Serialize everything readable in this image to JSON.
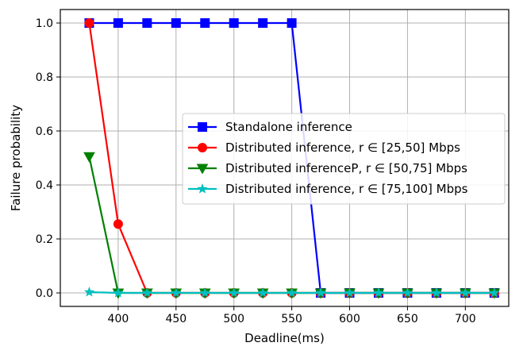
{
  "chart_data": {
    "type": "line",
    "title": "",
    "xlabel": "Deadline(ms)",
    "ylabel": "Failure probability",
    "xlim": [
      350,
      737.5
    ],
    "ylim": [
      -0.05,
      1.05
    ],
    "xticks": [
      400,
      450,
      500,
      550,
      600,
      650,
      700
    ],
    "yticks": [
      0.0,
      0.2,
      0.4,
      0.6,
      0.8,
      1.0
    ],
    "grid": true,
    "legend_position": "center-right",
    "x": [
      375,
      400,
      425,
      450,
      475,
      500,
      525,
      550,
      575,
      600,
      625,
      650,
      675,
      700,
      725
    ],
    "series": [
      {
        "name": "Standalone inference",
        "color": "#0000ff",
        "marker": "square",
        "values": [
          1.0,
          1.0,
          1.0,
          1.0,
          1.0,
          1.0,
          1.0,
          1.0,
          0.0,
          0.0,
          0.0,
          0.0,
          0.0,
          0.0,
          0.0
        ]
      },
      {
        "name": "Distributed inference, r ∈ [25,50] Mbps",
        "color": "#ff0000",
        "marker": "circle",
        "values": [
          1.0,
          0.255,
          0.0,
          0.0,
          0.0,
          0.0,
          0.0,
          0.0,
          0.0,
          0.0,
          0.0,
          0.0,
          0.0,
          0.0,
          0.0
        ]
      },
      {
        "name": "Distributed inferenceP, r ∈ [50,75] Mbps",
        "color": "#008000",
        "marker": "triangle-down",
        "values": [
          0.505,
          0.0,
          0.0,
          0.0,
          0.0,
          0.0,
          0.0,
          0.0,
          0.0,
          0.0,
          0.0,
          0.0,
          0.0,
          0.0,
          0.0
        ]
      },
      {
        "name": "Distributed inference, r ∈ [75,100] Mbps",
        "color": "#00bfbf",
        "marker": "star",
        "values": [
          0.003,
          0.0,
          0.0,
          0.0,
          0.0,
          0.0,
          0.0,
          0.0,
          0.0,
          0.0,
          0.0,
          0.0,
          0.0,
          0.0,
          0.0
        ]
      }
    ]
  }
}
